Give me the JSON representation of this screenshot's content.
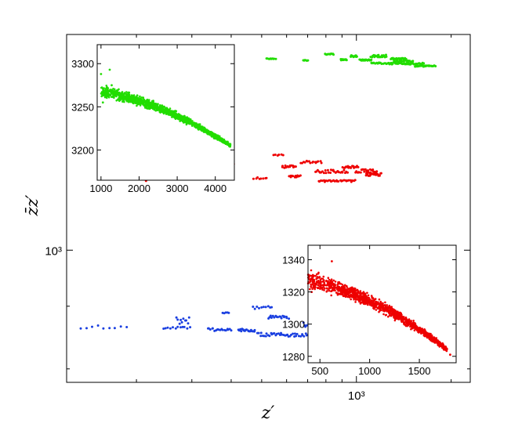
{
  "chart_data": [
    {
      "id": "main",
      "type": "scatter",
      "xscale": "log",
      "yscale": "log",
      "xlabel": "z′",
      "ylabel": "z̄z′",
      "xlim": [
        120,
        2300
      ],
      "ylim": [
        780,
        1500
      ],
      "xticks": [
        {
          "value": 1000,
          "label": "10³"
        }
      ],
      "yticks": [
        {
          "value": 1000,
          "label": "10³"
        }
      ],
      "grid": false,
      "series": [
        {
          "color": "#22dd00",
          "clusters": [
            {
              "x": [
                518,
                553
              ],
              "y": [
                1432,
                1434
              ],
              "n": 10
            },
            {
              "x": [
                676,
                703
              ],
              "y": [
                1428,
                1431
              ],
              "n": 7
            },
            {
              "x": [
                794,
                848
              ],
              "y": [
                1443,
                1447
              ],
              "n": 12
            },
            {
              "x": [
                889,
                936
              ],
              "y": [
                1429,
                1432
              ],
              "n": 12
            },
            {
              "x": [
                956,
                1004
              ],
              "y": [
                1437,
                1442
              ],
              "n": 14
            },
            {
              "x": [
                1024,
                1114
              ],
              "y": [
                1428,
                1431
              ],
              "n": 22
            },
            {
              "x": [
                1114,
                1248
              ],
              "y": [
                1437,
                1444
              ],
              "n": 24
            },
            {
              "x": [
                1114,
                1387
              ],
              "y": [
                1418,
                1423
              ],
              "n": 34
            },
            {
              "x": [
                1287,
                1439
              ],
              "y": [
                1430,
                1435
              ],
              "n": 24
            },
            {
              "x": [
                1323,
                1516
              ],
              "y": [
                1424,
                1429
              ],
              "n": 24
            },
            {
              "x": [
                1387,
                1635
              ],
              "y": [
                1418,
                1422
              ],
              "n": 30
            },
            {
              "x": [
                1533,
                1782
              ],
              "y": [
                1412,
                1415
              ],
              "n": 34
            }
          ]
        },
        {
          "color": "#ee0000",
          "clusters": [
            {
              "x": [
                214,
                214
              ],
              "y": [
                1139,
                1139
              ],
              "n": 1
            },
            {
              "x": [
                370,
                409
              ],
              "y": [
                1175,
                1177
              ],
              "n": 6
            },
            {
              "x": [
                395,
                404
              ],
              "y": [
                1154,
                1156
              ],
              "n": 3
            },
            {
              "x": [
                545,
                587
              ],
              "y": [
                1194,
                1197
              ],
              "n": 6
            },
            {
              "x": [
                473,
                518
              ],
              "y": [
                1143,
                1147
              ],
              "n": 8
            },
            {
              "x": [
                580,
                642
              ],
              "y": [
                1167,
                1173
              ],
              "n": 14
            },
            {
              "x": [
                612,
                665
              ],
              "y": [
                1147,
                1151
              ],
              "n": 12
            },
            {
              "x": [
                665,
                776
              ],
              "y": [
                1178,
                1183
              ],
              "n": 16
            },
            {
              "x": [
                742,
                937
              ],
              "y": [
                1156,
                1163
              ],
              "n": 28
            },
            {
              "x": [
                757,
                993
              ],
              "y": [
                1137,
                1141
              ],
              "n": 30
            },
            {
              "x": [
                904,
                1014
              ],
              "y": [
                1167,
                1172
              ],
              "n": 18
            },
            {
              "x": [
                993,
                1160
              ],
              "y": [
                1157,
                1164
              ],
              "n": 22
            },
            {
              "x": [
                1070,
                1200
              ],
              "y": [
                1150,
                1156
              ],
              "n": 22
            }
          ]
        },
        {
          "color": "#1a3fe0",
          "clusters": [
            {
              "x": [
                133,
                186
              ],
              "y": [
                863,
                868
              ],
              "n": 9
            },
            {
              "x": [
                244,
                295
              ],
              "y": [
                862,
                866
              ],
              "n": 12
            },
            {
              "x": [
                268,
                294
              ],
              "y": [
                870,
                883
              ],
              "n": 10
            },
            {
              "x": [
                337,
                400
              ],
              "y": [
                859,
                864
              ],
              "n": 18
            },
            {
              "x": [
                376,
                395
              ],
              "y": [
                886,
                890
              ],
              "n": 5
            },
            {
              "x": [
                422,
                476
              ],
              "y": [
                858,
                863
              ],
              "n": 20
            },
            {
              "x": [
                468,
                540
              ],
              "y": [
                895,
                900
              ],
              "n": 10
            },
            {
              "x": [
                526,
                608
              ],
              "y": [
                879,
                884
              ],
              "n": 18
            },
            {
              "x": [
                486,
                931
              ],
              "y": [
                850,
                856
              ],
              "n": 70
            },
            {
              "x": [
                678,
                760
              ],
              "y": [
                866,
                873
              ],
              "n": 18
            },
            {
              "x": [
                755,
                795
              ],
              "y": [
                885,
                889
              ],
              "n": 10
            },
            {
              "x": [
                840,
                910
              ],
              "y": [
                859,
                864
              ],
              "n": 14
            },
            {
              "x": [
                865,
                905
              ],
              "y": [
                874,
                879
              ],
              "n": 8
            }
          ]
        }
      ]
    },
    {
      "id": "inset-green",
      "type": "scatter",
      "xlim": [
        900,
        4500
      ],
      "ylim": [
        3165,
        3322
      ],
      "xticks": [
        1000,
        2000,
        3000,
        4000
      ],
      "yticks": [
        3200,
        3250,
        3300
      ],
      "color": "#22dd00",
      "trend": {
        "x_start": 1000,
        "x_end": 4400,
        "y_start": 3268,
        "y_end": 3205,
        "curvature": 0.55,
        "spread_start": 20,
        "spread_end": 6
      },
      "outliers": [
        [
          1000,
          3288
        ],
        [
          1050,
          3255
        ],
        [
          1230,
          3293
        ],
        [
          1280,
          3275
        ],
        [
          1140,
          3262
        ],
        [
          1330,
          3268
        ],
        [
          1500,
          3263
        ]
      ],
      "n_points": 1400
    },
    {
      "id": "inset-red",
      "type": "scatter",
      "xlim": [
        380,
        1870
      ],
      "ylim": [
        1276,
        1349
      ],
      "xticks": [
        500,
        1000,
        1500
      ],
      "yticks": [
        1280,
        1300,
        1320,
        1340
      ],
      "color": "#ee0000",
      "trend": {
        "x_start": 380,
        "x_end": 1780,
        "y_start": 1327,
        "y_end": 1284,
        "curvature": 0.6,
        "spread_start": 16,
        "spread_end": 4
      },
      "outliers": [
        [
          440,
          1330
        ],
        [
          395,
          1326
        ],
        [
          620,
          1339
        ],
        [
          1810,
          1281
        ]
      ],
      "n_points": 1300
    }
  ]
}
